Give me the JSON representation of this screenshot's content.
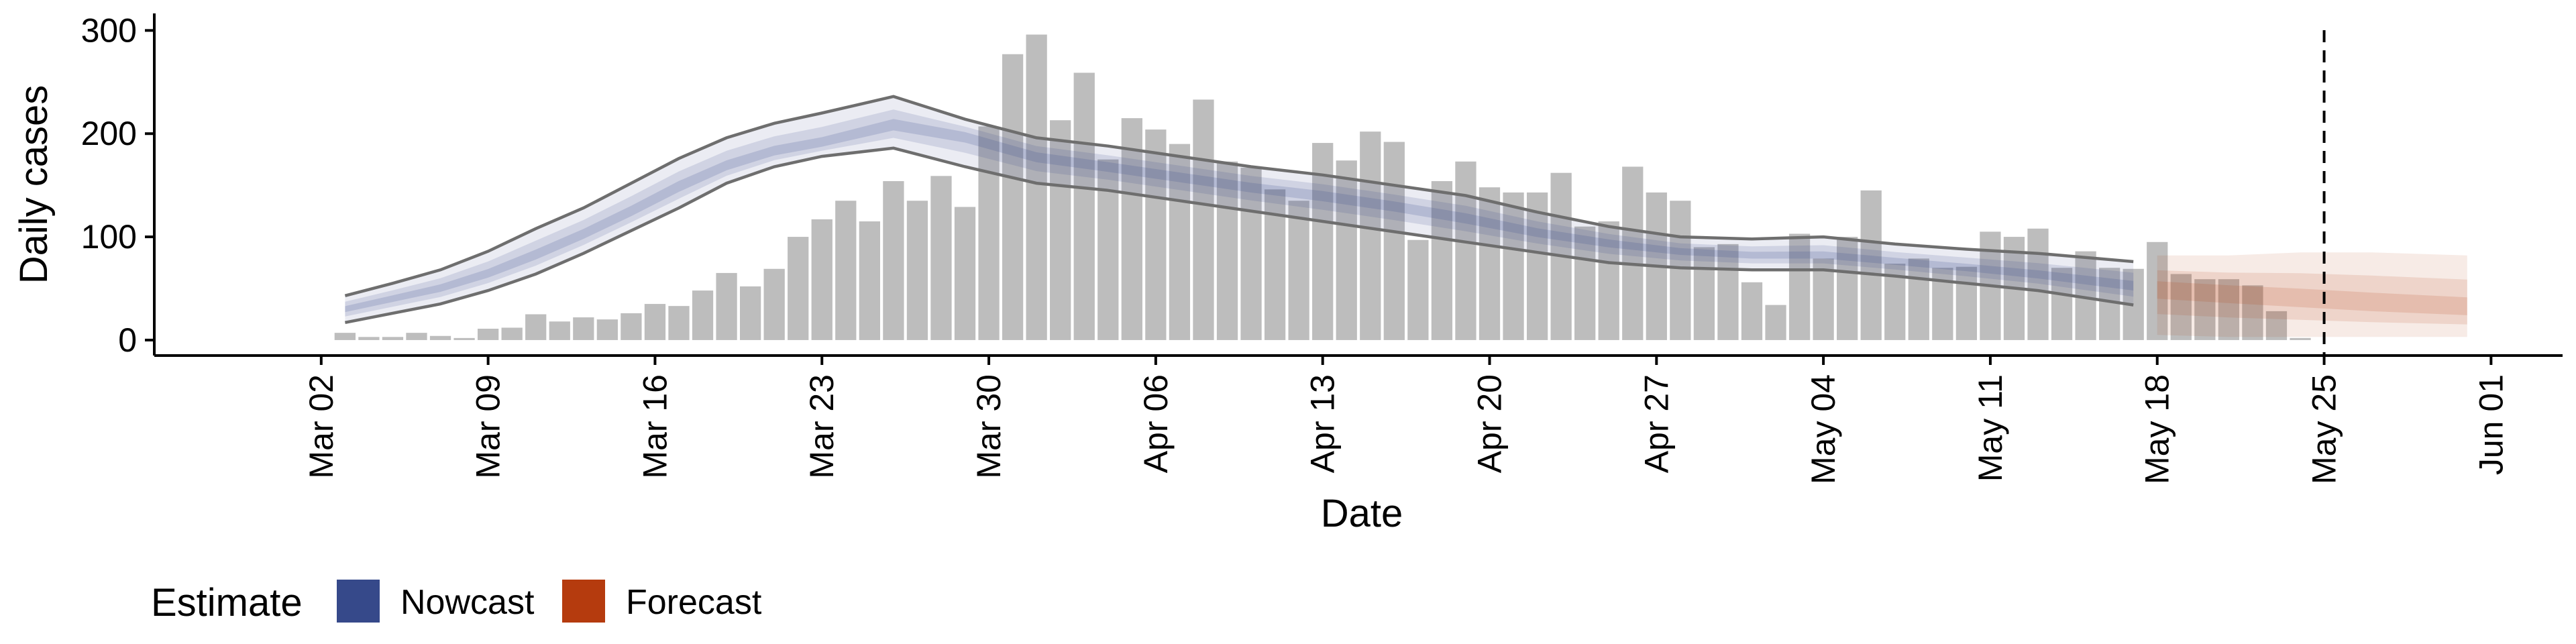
{
  "colors": {
    "bar": "#BDBDBD",
    "nowcast": "#36498A",
    "forecast": "#B53B0E",
    "axis": "#000000",
    "bound_line": "#6E6E6E"
  },
  "legend": {
    "title": "Estimate",
    "items": [
      {
        "label": "Nowcast",
        "color": "#36498A"
      },
      {
        "label": "Forecast",
        "color": "#B53B0E"
      }
    ]
  },
  "chart_data": {
    "type": "bar",
    "title": "",
    "xlabel": "Date",
    "ylabel": "Daily cases",
    "ylim": [
      -15,
      310
    ],
    "y_ticks": [
      0,
      100,
      200,
      300
    ],
    "xlim": [
      "2020-02-24",
      "2020-06-04"
    ],
    "x_ticks": [
      {
        "date": "2020-03-02",
        "label": "Mar 02"
      },
      {
        "date": "2020-03-09",
        "label": "Mar 09"
      },
      {
        "date": "2020-03-16",
        "label": "Mar 16"
      },
      {
        "date": "2020-03-23",
        "label": "Mar 23"
      },
      {
        "date": "2020-03-30",
        "label": "Mar 30"
      },
      {
        "date": "2020-04-06",
        "label": "Apr 06"
      },
      {
        "date": "2020-04-13",
        "label": "Apr 13"
      },
      {
        "date": "2020-04-20",
        "label": "Apr 20"
      },
      {
        "date": "2020-04-27",
        "label": "Apr 27"
      },
      {
        "date": "2020-05-04",
        "label": "May 04"
      },
      {
        "date": "2020-05-11",
        "label": "May 11"
      },
      {
        "date": "2020-05-18",
        "label": "May 18"
      },
      {
        "date": "2020-05-25",
        "label": "May 25"
      },
      {
        "date": "2020-06-01",
        "label": "Jun 01"
      }
    ],
    "grid": false,
    "legend_position": "bottom-left",
    "reference_line": {
      "date": "2020-05-25",
      "style": "dashed"
    },
    "bars": {
      "start_date": "2020-03-03",
      "values": [
        7,
        3,
        3,
        7,
        4,
        2,
        11,
        12,
        25,
        18,
        22,
        20,
        26,
        35,
        33,
        48,
        65,
        52,
        69,
        100,
        117,
        135,
        115,
        154,
        135,
        159,
        129,
        207,
        277,
        296,
        213,
        259,
        175,
        215,
        204,
        190,
        233,
        173,
        167,
        146,
        135,
        191,
        174,
        202,
        192,
        97,
        154,
        173,
        148,
        143,
        143,
        162,
        110,
        115,
        168,
        143,
        135,
        90,
        93,
        56,
        34,
        103,
        79,
        100,
        145,
        74,
        79,
        70,
        71,
        105,
        100,
        108,
        70,
        86,
        70,
        69,
        95,
        64,
        59,
        59,
        53,
        28,
        2
      ]
    },
    "series": [
      {
        "name": "Nowcast",
        "dates": [
          "2020-03-03",
          "2020-03-05",
          "2020-03-07",
          "2020-03-09",
          "2020-03-11",
          "2020-03-13",
          "2020-03-15",
          "2020-03-17",
          "2020-03-19",
          "2020-03-21",
          "2020-03-23",
          "2020-03-26",
          "2020-03-29",
          "2020-04-01",
          "2020-04-04",
          "2020-04-07",
          "2020-04-10",
          "2020-04-13",
          "2020-04-16",
          "2020-04-19",
          "2020-04-22",
          "2020-04-25",
          "2020-04-28",
          "2020-05-01",
          "2020-05-04",
          "2020-05-07",
          "2020-05-10",
          "2020-05-13",
          "2020-05-17"
        ],
        "median": [
          30,
          40,
          50,
          64,
          82,
          102,
          124,
          148,
          168,
          182,
          190,
          208,
          198,
          178,
          168,
          158,
          148,
          140,
          130,
          118,
          104,
          94,
          86,
          82,
          82,
          76,
          70,
          63,
          52
        ],
        "lower": [
          17,
          26,
          35,
          48,
          64,
          84,
          106,
          128,
          152,
          168,
          178,
          186,
          168,
          152,
          145,
          135,
          125,
          115,
          105,
          95,
          85,
          75,
          70,
          68,
          68,
          62,
          55,
          48,
          34
        ],
        "upper": [
          43,
          55,
          68,
          86,
          108,
          128,
          152,
          176,
          196,
          210,
          220,
          236,
          214,
          196,
          188,
          178,
          168,
          160,
          150,
          140,
          124,
          110,
          100,
          98,
          100,
          93,
          88,
          84,
          76
        ]
      },
      {
        "name": "Forecast",
        "dates": [
          "2020-05-18",
          "2020-05-21",
          "2020-05-24",
          "2020-05-27",
          "2020-05-31"
        ],
        "median": [
          50,
          45,
          40,
          35,
          30
        ],
        "lower": [
          5,
          3,
          3,
          3,
          3
        ],
        "upper": [
          82,
          82,
          85,
          85,
          82
        ]
      }
    ]
  }
}
